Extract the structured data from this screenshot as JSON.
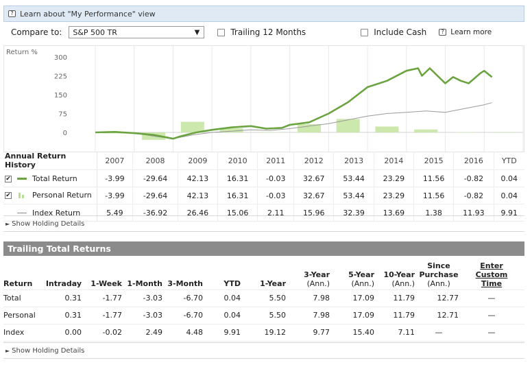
{
  "info": {
    "text": "Learn about \"My Performance\" view"
  },
  "compare": {
    "label": "Compare to:",
    "selected": "S&P 500 TR",
    "trailing_label": "Trailing 12 Months",
    "cash_label": "Include Cash",
    "learn_more": "Learn more"
  },
  "chart_data": {
    "type": "line",
    "ylabel": "Return %",
    "y_ticks": [
      "300",
      "225",
      "150",
      "75",
      "0"
    ],
    "ylim": [
      -25,
      300
    ],
    "annual_bars": {
      "categories": [
        "2007",
        "2008",
        "2009",
        "2010",
        "2011",
        "2012",
        "2013",
        "2014",
        "2015",
        "2016",
        "YTD"
      ],
      "values": [
        -3.99,
        -29.64,
        42.13,
        16.31,
        -0.03,
        32.67,
        53.44,
        23.29,
        11.56,
        -0.82,
        0.04
      ]
    },
    "series": [
      {
        "name": "Total Return",
        "color": "#6aa33f",
        "x": [
          2007.0,
          2007.5,
          2008.0,
          2008.5,
          2009.0,
          2009.2,
          2009.6,
          2010.0,
          2010.5,
          2011.0,
          2011.4,
          2011.8,
          2012.0,
          2012.5,
          2013.0,
          2013.5,
          2014.0,
          2014.5,
          2015.0,
          2015.3,
          2015.4,
          2015.6,
          2016.0,
          2016.2,
          2016.4,
          2016.6,
          2016.9,
          2017.0,
          2017.2
        ],
        "values": [
          0,
          2,
          -3,
          -10,
          -25,
          -15,
          0,
          10,
          20,
          25,
          15,
          18,
          30,
          40,
          75,
          120,
          180,
          205,
          245,
          255,
          225,
          255,
          195,
          220,
          205,
          195,
          235,
          245,
          220
        ]
      },
      {
        "name": "Index Return",
        "color": "#999999",
        "x": [
          2007.0,
          2007.5,
          2008.0,
          2008.5,
          2009.0,
          2009.5,
          2010.0,
          2010.5,
          2011.0,
          2011.5,
          2012.0,
          2012.5,
          2013.0,
          2013.5,
          2014.0,
          2014.5,
          2015.0,
          2015.5,
          2016.0,
          2016.5,
          2017.0,
          2017.2
        ],
        "values": [
          0,
          3,
          -2,
          -15,
          -25,
          -10,
          0,
          5,
          10,
          8,
          15,
          25,
          35,
          50,
          65,
          75,
          80,
          85,
          80,
          95,
          110,
          118
        ]
      }
    ]
  },
  "annual": {
    "title": "Annual Return History",
    "years": [
      "2007",
      "2008",
      "2009",
      "2010",
      "2011",
      "2012",
      "2013",
      "2014",
      "2015",
      "2016",
      "YTD"
    ],
    "rows": [
      {
        "label": "Total Return",
        "check": "✔",
        "values": [
          "-3.99",
          "-29.64",
          "42.13",
          "16.31",
          "-0.03",
          "32.67",
          "53.44",
          "23.29",
          "11.56",
          "-0.82",
          "0.04"
        ]
      },
      {
        "label": "Personal Return",
        "check": "✔",
        "values": [
          "-3.99",
          "-29.64",
          "42.13",
          "16.31",
          "-0.03",
          "32.67",
          "53.44",
          "23.29",
          "11.56",
          "-0.82",
          "0.04"
        ]
      },
      {
        "label": "Index Return",
        "values": [
          "5.49",
          "-36.92",
          "26.46",
          "15.06",
          "2.11",
          "15.96",
          "32.39",
          "13.69",
          "1.38",
          "11.93",
          "9.91"
        ]
      }
    ],
    "show_details": "Show Holding Details"
  },
  "trailing": {
    "title": "Trailing Total Returns",
    "headers": {
      "return": "Return",
      "intraday": "Intraday",
      "w1": "1-Week",
      "m1": "1-Month",
      "m3": "3-Month",
      "ytd": "YTD",
      "y1": "1-Year",
      "y3": "3-Year",
      "y5": "5-Year",
      "y10": "10-Year",
      "since_line1": "Since",
      "since_line2": "Purchase",
      "ann": "(Ann.)",
      "custom_line1": "Enter",
      "custom_line2": "Custom",
      "custom_line3": "Time"
    },
    "rows": [
      {
        "label": "Total",
        "values": [
          "0.31",
          "-1.77",
          "-3.03",
          "-6.70",
          "0.04",
          "5.50",
          "7.98",
          "17.09",
          "11.79",
          "12.77",
          "—"
        ]
      },
      {
        "label": "Personal",
        "values": [
          "0.31",
          "-1.77",
          "-3.03",
          "-6.70",
          "0.04",
          "5.50",
          "7.98",
          "17.09",
          "11.79",
          "12.71",
          "—"
        ]
      },
      {
        "label": "Index",
        "values": [
          "0.00",
          "-0.02",
          "2.49",
          "4.48",
          "9.91",
          "19.12",
          "9.77",
          "15.40",
          "7.11",
          "—",
          "—"
        ]
      }
    ],
    "show_details": "Show Holding Details"
  },
  "icons": {
    "help": "?",
    "triangle": "►"
  }
}
